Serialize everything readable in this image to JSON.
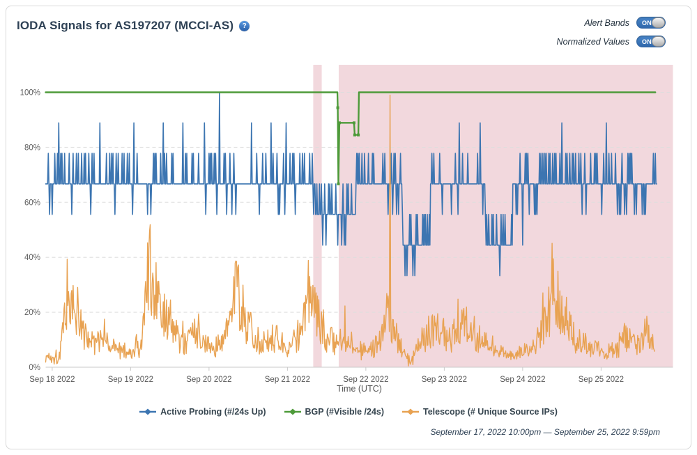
{
  "header": {
    "title": "IODA Signals for AS197207 (MCCI-AS)",
    "help_icon": "?"
  },
  "controls": {
    "alert_bands_label": "Alert Bands",
    "normalized_values_label": "Normalized Values",
    "alert_bands_state": "ON",
    "normalized_values_state": "ON"
  },
  "footer": {
    "time_range": "September 17, 2022 10:00pm — September 25, 2022 9:59pm"
  },
  "chart_data": {
    "type": "line",
    "title": "IODA normalized signals for AS197207 (MCCI-AS)",
    "xlabel": "Time (UTC)",
    "ylabel": "",
    "x_origin": "Sep 17 2022 22:00 UTC",
    "x_range_hours": [
      0,
      192
    ],
    "y_range": [
      0,
      110
    ],
    "grid": "horizontal-dashed",
    "legend_position": "bottom-center",
    "y_ticks": [
      {
        "v": 0,
        "label": "0%"
      },
      {
        "v": 20,
        "label": "20%"
      },
      {
        "v": 40,
        "label": "40%"
      },
      {
        "v": 60,
        "label": "60%"
      },
      {
        "v": 80,
        "label": "80%"
      },
      {
        "v": 100,
        "label": "100%"
      }
    ],
    "x_ticks": [
      {
        "t": 2,
        "label": "Sep 18 2022"
      },
      {
        "t": 26,
        "label": "Sep 19 2022"
      },
      {
        "t": 50,
        "label": "Sep 20 2022"
      },
      {
        "t": 74,
        "label": "Sep 21 2022"
      },
      {
        "t": 98,
        "label": "Sep 22 2022"
      },
      {
        "t": 122,
        "label": "Sep 23 2022"
      },
      {
        "t": 146,
        "label": "Sep 24 2022"
      },
      {
        "t": 170,
        "label": "Sep 25 2022"
      }
    ],
    "alert_bands": [
      {
        "t0": 81.9,
        "t1": 84.5
      },
      {
        "t0": 89.7,
        "t1": 192
      }
    ],
    "band_color": "rgba(196,78,100,0.22)",
    "series": [
      {
        "name": "Active Probing (#/24s Up)",
        "color": "#3C75B1",
        "style": "quantized-spiky",
        "levels_pct": [
          33.3,
          44.4,
          55.6,
          66.7,
          77.8,
          88.9,
          100
        ],
        "sample_step_hours": 0.2,
        "end_hour": 187,
        "regimes": [
          {
            "t0": 0,
            "t1": 82.5,
            "base": 66.7,
            "up": 77.8,
            "down": 55.6,
            "p_up": 0.22,
            "p_down": 0.07
          },
          {
            "t0": 82.5,
            "t1": 90.2,
            "base": 55.6,
            "up": 66.7,
            "down": 44.4,
            "p_up": 0.3,
            "p_down": 0.18
          },
          {
            "t0": 90.2,
            "t1": 95.0,
            "base": 55.6,
            "up": 66.7,
            "down": 44.4,
            "p_up": 0.08,
            "p_down": 0.35
          },
          {
            "t0": 95.0,
            "t1": 109.2,
            "base": 66.7,
            "up": 77.8,
            "down": 55.6,
            "p_up": 0.3,
            "p_down": 0.12
          },
          {
            "t0": 109.2,
            "t1": 117.8,
            "base": 44.4,
            "up": 55.6,
            "down": 33.3,
            "p_up": 0.3,
            "p_down": 0.15
          },
          {
            "t0": 117.8,
            "t1": 134.5,
            "base": 66.7,
            "up": 77.8,
            "down": 55.6,
            "p_up": 0.22,
            "p_down": 0.07
          },
          {
            "t0": 134.5,
            "t1": 143.0,
            "base": 44.4,
            "up": 55.6,
            "down": 33.3,
            "p_up": 0.4,
            "p_down": 0.03
          },
          {
            "t0": 143.0,
            "t1": 187.0,
            "base": 66.7,
            "up": 77.8,
            "down": 55.6,
            "p_up": 0.26,
            "p_down": 0.1
          }
        ],
        "notable_points": [
          [
            4,
            88.9
          ],
          [
            16.5,
            88.9
          ],
          [
            27,
            88.9
          ],
          [
            36,
            88.9
          ],
          [
            42,
            88.9
          ],
          [
            48.5,
            88.9
          ],
          [
            53.3,
            100
          ],
          [
            63,
            88.9
          ],
          [
            69,
            88.9
          ],
          [
            73.5,
            88.9
          ],
          [
            126.5,
            88.9
          ],
          [
            133,
            88.9
          ],
          [
            146,
            44.4
          ],
          [
            158,
            88.9
          ],
          [
            171.5,
            88.9
          ]
        ],
        "seed": 42
      },
      {
        "name": "BGP (#Visible /24s)",
        "color": "#4D9A39",
        "style": "step",
        "breakpoints": [
          [
            0,
            100
          ],
          [
            89.3,
            100
          ],
          [
            89.4,
            94.4
          ],
          [
            89.6,
            66.7
          ],
          [
            89.9,
            88.9
          ],
          [
            94.4,
            88.9
          ],
          [
            94.6,
            84.5
          ],
          [
            95.7,
            84.5
          ],
          [
            95.9,
            100
          ],
          [
            186.6,
            100
          ]
        ]
      },
      {
        "name": "Telescope (# Unique Source IPs)",
        "color": "#E8A252",
        "style": "noisy",
        "sample_step_hours": 0.2,
        "end_hour": 186.4,
        "envelope": [
          [
            0,
            4
          ],
          [
            4,
            4
          ],
          [
            7.3,
            27
          ],
          [
            9,
            22
          ],
          [
            12,
            12
          ],
          [
            15,
            8
          ],
          [
            18,
            11
          ],
          [
            21,
            7
          ],
          [
            26,
            5
          ],
          [
            29,
            7
          ],
          [
            31.2,
            28
          ],
          [
            31.5,
            43
          ],
          [
            32.5,
            30
          ],
          [
            34,
            28
          ],
          [
            36,
            20
          ],
          [
            40,
            12
          ],
          [
            43,
            10
          ],
          [
            46,
            12
          ],
          [
            50,
            7
          ],
          [
            54,
            8
          ],
          [
            56,
            16
          ],
          [
            58.5,
            30
          ],
          [
            60,
            22
          ],
          [
            63,
            14
          ],
          [
            66,
            10
          ],
          [
            70,
            11
          ],
          [
            74,
            7
          ],
          [
            78,
            13
          ],
          [
            81,
            26
          ],
          [
            83,
            20
          ],
          [
            86,
            12
          ],
          [
            89,
            10
          ],
          [
            92,
            12
          ],
          [
            95,
            8
          ],
          [
            99,
            6
          ],
          [
            102,
            10
          ],
          [
            104.5,
            20
          ],
          [
            106,
            16
          ],
          [
            108,
            10
          ],
          [
            110,
            4
          ],
          [
            112,
            2
          ],
          [
            114,
            8
          ],
          [
            117,
            14
          ],
          [
            120,
            16
          ],
          [
            123,
            12
          ],
          [
            126,
            14
          ],
          [
            129,
            18
          ],
          [
            132,
            12
          ],
          [
            135,
            10
          ],
          [
            138,
            7
          ],
          [
            141,
            5
          ],
          [
            144,
            4
          ],
          [
            147,
            6
          ],
          [
            150,
            8
          ],
          [
            153,
            18
          ],
          [
            155.5,
            30
          ],
          [
            157,
            24
          ],
          [
            160,
            16
          ],
          [
            163,
            11
          ],
          [
            166,
            9
          ],
          [
            169,
            7
          ],
          [
            172,
            5
          ],
          [
            175,
            7
          ],
          [
            178,
            13
          ],
          [
            180,
            12
          ],
          [
            182,
            9
          ],
          [
            184,
            14
          ],
          [
            186.4,
            8
          ]
        ],
        "spikes": [
          [
            31.5,
            43
          ],
          [
            105.4,
            99
          ]
        ],
        "noise": {
          "mult_min": 0.5,
          "mult_span": 0.9,
          "abs_jitter": 2.6,
          "spike_prob": 0.05,
          "spike_gain": 0.5
        },
        "seed": 1337
      }
    ]
  }
}
